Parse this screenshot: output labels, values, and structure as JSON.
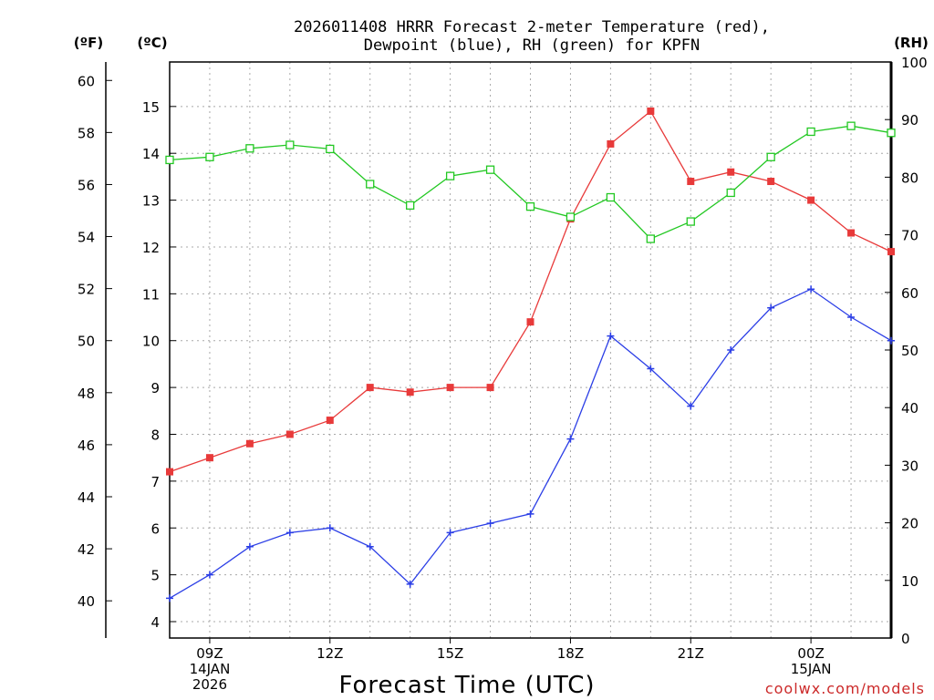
{
  "chart_data": {
    "type": "line",
    "title_lines": [
      "2026011408 HRRR Forecast 2-meter Temperature (red),",
      "Dewpoint (blue), RH (green) for KPFN"
    ],
    "unit_labels": {
      "fahrenheit": "(ºF)",
      "celsius": "(ºC)",
      "rh": "(RH)"
    },
    "xlabel": "Forecast Time (UTC)",
    "credit": "coolwx.com/models",
    "x_hours": [
      8,
      9,
      10,
      11,
      12,
      13,
      14,
      15,
      16,
      17,
      18,
      19,
      20,
      21,
      22,
      23,
      24,
      25,
      26
    ],
    "xlim": [
      8,
      26
    ],
    "x_ticks": [
      {
        "hour": 9,
        "lines": [
          "09Z",
          "14JAN",
          "2026"
        ]
      },
      {
        "hour": 12,
        "lines": [
          "12Z"
        ]
      },
      {
        "hour": 15,
        "lines": [
          "15Z"
        ]
      },
      {
        "hour": 18,
        "lines": [
          "18Z"
        ]
      },
      {
        "hour": 21,
        "lines": [
          "21Z"
        ]
      },
      {
        "hour": 24,
        "lines": [
          "00Z",
          "15JAN"
        ]
      }
    ],
    "celsius_axis": {
      "ylim": [
        3.65,
        15.95
      ],
      "ticks": [
        "4",
        "5",
        "6",
        "7",
        "8",
        "9",
        "10",
        "11",
        "12",
        "13",
        "14",
        "15"
      ]
    },
    "fahrenheit_axis": {
      "ticks": [
        "40",
        "42",
        "44",
        "46",
        "48",
        "50",
        "52",
        "54",
        "56",
        "58",
        "60"
      ]
    },
    "rh_axis": {
      "ylim": [
        0,
        100
      ],
      "ticks": [
        "0",
        "10",
        "20",
        "30",
        "40",
        "50",
        "60",
        "70",
        "80",
        "90",
        "100"
      ]
    },
    "series": [
      {
        "name": "Temperature",
        "units": "C",
        "color": "#e83a3a",
        "marker": "filled-square",
        "values": [
          7.2,
          7.5,
          7.8,
          8.0,
          8.3,
          9.0,
          8.9,
          9.0,
          9.0,
          10.4,
          12.6,
          14.2,
          14.9,
          13.4,
          13.6,
          13.4,
          13.0,
          12.3,
          11.9
        ]
      },
      {
        "name": "Dewpoint",
        "units": "C",
        "color": "#2b3ee6",
        "marker": "plus",
        "values": [
          4.5,
          5.0,
          5.6,
          5.9,
          6.0,
          5.6,
          4.8,
          5.9,
          6.1,
          6.3,
          7.9,
          10.1,
          9.4,
          8.6,
          9.8,
          10.7,
          11.1,
          10.5,
          10.0
        ]
      },
      {
        "name": "RH",
        "units": "%",
        "color": "#22c822",
        "marker": "open-square",
        "values": [
          83.0,
          83.5,
          85.0,
          85.6,
          84.9,
          78.8,
          75.1,
          80.2,
          81.3,
          74.9,
          73.1,
          76.5,
          69.3,
          72.3,
          77.3,
          83.5,
          87.9,
          88.9,
          87.7
        ]
      }
    ]
  }
}
